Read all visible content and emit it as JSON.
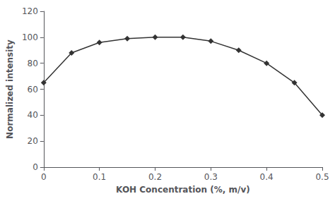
{
  "chart_data": {
    "type": "line",
    "x": [
      0,
      0.05,
      0.1,
      0.15,
      0.2,
      0.25,
      0.3,
      0.35,
      0.4,
      0.45,
      0.5
    ],
    "values": [
      65,
      88,
      96,
      99,
      100,
      100,
      97,
      90,
      80,
      65,
      40
    ],
    "xlabel": "KOH Concentration (%, m/v)",
    "ylabel": "Normalized intensity",
    "xlim": [
      0,
      0.5
    ],
    "ylim": [
      0,
      120
    ],
    "xticks": [
      0,
      0.1,
      0.2,
      0.3,
      0.4,
      0.5
    ],
    "yticks": [
      0,
      20,
      40,
      60,
      80,
      100,
      120
    ],
    "color": "#333333",
    "marker": "diamond",
    "grid": false
  }
}
